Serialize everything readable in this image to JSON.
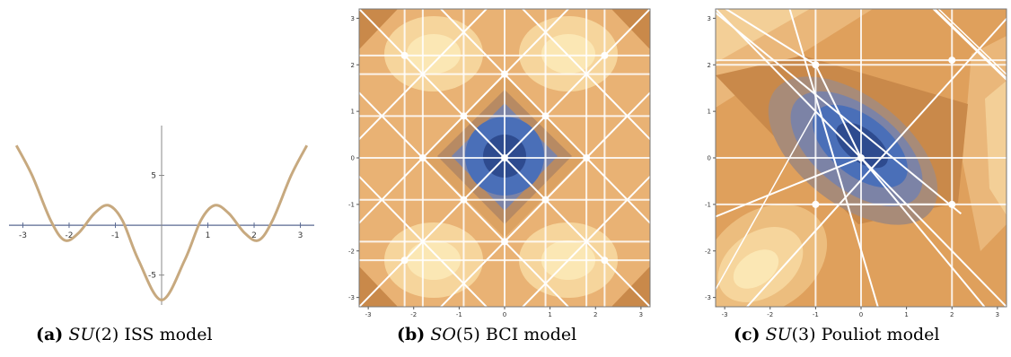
{
  "figures": [
    {
      "label": "(a)",
      "math_group": "SU",
      "math_arg": "(2)",
      "caption_rest": " ISS model",
      "plot_type": "line",
      "x_ticks": [
        "-3",
        "-2",
        "-1",
        "1",
        "2",
        "3"
      ],
      "y_ticks": [
        "5",
        "-5"
      ],
      "line_color": "#c7a97f",
      "axis_color": "#5a6a92"
    },
    {
      "label": "(b)",
      "math_group": "SO",
      "math_arg": "(5)",
      "caption_rest": " BCI model",
      "plot_type": "contour",
      "x_ticks": [
        "-3",
        "-2",
        "-1",
        "0",
        "1",
        "2",
        "3"
      ],
      "y_ticks": [
        "3",
        "2",
        "1",
        "0",
        "-1",
        "-2",
        "-3"
      ]
    },
    {
      "label": "(c)",
      "math_group": "SU",
      "math_arg": "(3)",
      "caption_rest": " Pouliot model",
      "plot_type": "contour",
      "x_ticks": [
        "-3",
        "-2",
        "-1",
        "0",
        "1",
        "2",
        "3"
      ],
      "y_ticks": [
        "3",
        "2",
        "1",
        "0",
        "-1",
        "-2",
        "-3"
      ]
    }
  ],
  "chart_data": [
    {
      "type": "line",
      "title": "",
      "xlabel": "",
      "ylabel": "",
      "xlim": [
        -3.3,
        3.3
      ],
      "ylim": [
        -8,
        10
      ],
      "x": [
        -3.14,
        -2.8,
        -2.4,
        -2.1,
        -1.8,
        -1.45,
        -1.15,
        -0.85,
        -0.5,
        0,
        0.5,
        0.85,
        1.15,
        1.45,
        1.8,
        2.1,
        2.4,
        2.8,
        3.14
      ],
      "y": [
        8.0,
        5.0,
        0.5,
        -1.5,
        -0.8,
        1.2,
        2.0,
        0.5,
        -3.5,
        -7.5,
        -3.5,
        0.5,
        2.0,
        1.2,
        -0.8,
        -1.5,
        0.5,
        5.0,
        8.0
      ]
    },
    {
      "type": "heatmap",
      "title": "",
      "xlim": [
        -3.2,
        3.2
      ],
      "ylim": [
        -3.2,
        3.2
      ],
      "colors": [
        "#2e4b8f",
        "#4a6fb8",
        "#7c83a6",
        "#a88b78",
        "#c9894a",
        "#dca262",
        "#ecbd7e",
        "#f6d59c",
        "#fbe7b4"
      ],
      "critical_points": [
        [
          0,
          0
        ],
        [
          0.9,
          0.9
        ],
        [
          -0.9,
          0.9
        ],
        [
          0.9,
          -0.9
        ],
        [
          -0.9,
          -0.9
        ],
        [
          1.8,
          0
        ],
        [
          -1.8,
          0
        ],
        [
          0,
          1.8
        ],
        [
          0,
          -1.8
        ],
        [
          2.2,
          2.2
        ],
        [
          -2.2,
          2.2
        ],
        [
          2.2,
          -2.2
        ],
        [
          -2.2,
          -2.2
        ]
      ]
    },
    {
      "type": "heatmap",
      "title": "",
      "xlim": [
        -3.2,
        3.2
      ],
      "ylim": [
        -3.2,
        3.2
      ],
      "colors": [
        "#2e4b8f",
        "#4a6fb8",
        "#7c83a6",
        "#a88b78",
        "#c9894a",
        "#dca262",
        "#ecbd7e",
        "#f6d59c",
        "#fbe7b4"
      ],
      "critical_points": [
        [
          0,
          0
        ],
        [
          -1,
          2
        ],
        [
          -1,
          -1
        ],
        [
          2,
          -1
        ],
        [
          2,
          2.1
        ]
      ]
    }
  ]
}
